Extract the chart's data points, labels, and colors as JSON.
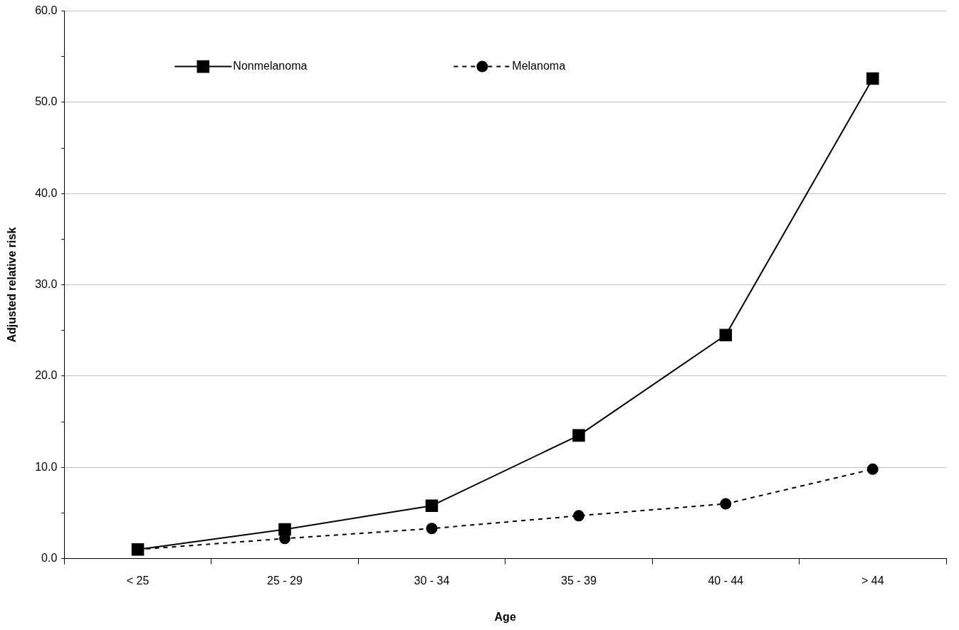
{
  "chart_data": {
    "type": "line",
    "xlabel": "Age",
    "ylabel": "Adjusted relative risk",
    "categories": [
      "< 25",
      "25 - 29",
      "30 - 34",
      "35 - 39",
      "40 - 44",
      "> 44"
    ],
    "series": [
      {
        "name": "Nonmelanoma",
        "color": "#000000",
        "marker": "square",
        "line_style": "solid",
        "values": [
          1.0,
          3.2,
          5.8,
          13.5,
          24.5,
          52.6
        ]
      },
      {
        "name": "Melanoma",
        "color": "#000000",
        "marker": "circle",
        "line_style": "dashed",
        "values": [
          1.0,
          2.2,
          3.3,
          4.7,
          6.0,
          9.8
        ]
      }
    ],
    "ylim": [
      0,
      60
    ],
    "yticks": [
      {
        "value": 0,
        "label": "0.0"
      },
      {
        "value": 5,
        "label": null
      },
      {
        "value": 10,
        "label": "10.0"
      },
      {
        "value": 15,
        "label": null
      },
      {
        "value": 20,
        "label": "20.0"
      },
      {
        "value": 25,
        "label": null
      },
      {
        "value": 30,
        "label": "30.0"
      },
      {
        "value": 35,
        "label": null
      },
      {
        "value": 40,
        "label": "40.0"
      },
      {
        "value": 45,
        "label": null
      },
      {
        "value": 50,
        "label": "50.0"
      },
      {
        "value": 55,
        "label": null
      },
      {
        "value": 60,
        "label": "60.0"
      }
    ],
    "grid": "y",
    "legend": "top left"
  }
}
